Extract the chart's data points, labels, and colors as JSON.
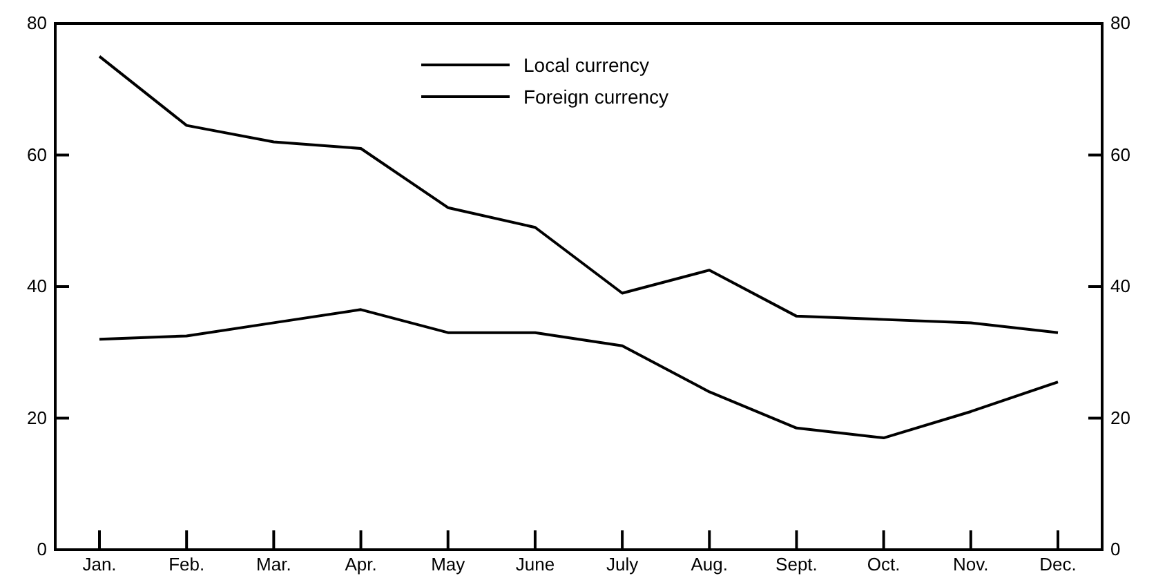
{
  "chart_data": {
    "type": "line",
    "categories": [
      "Jan.",
      "Feb.",
      "Mar.",
      "Apr.",
      "May",
      "June",
      "July",
      "Aug.",
      "Sept.",
      "Oct.",
      "Nov.",
      "Dec."
    ],
    "series": [
      {
        "name": "Local currency",
        "color": "#000000",
        "values": [
          75,
          64.5,
          62,
          61,
          52,
          49,
          39,
          42.5,
          35.5,
          35,
          34.5,
          33
        ]
      },
      {
        "name": "Foreign currency",
        "color": "#000000",
        "values": [
          32,
          32.5,
          34.5,
          36.5,
          33,
          33,
          31,
          24,
          18.5,
          17,
          21,
          25.5
        ]
      }
    ],
    "ylim": [
      0,
      80
    ],
    "yticks": [
      0,
      20,
      40,
      60,
      80
    ],
    "y2lim": [
      0,
      80
    ],
    "y2ticks": [
      0,
      20,
      40,
      60,
      80
    ],
    "grid": false,
    "legend": "top",
    "marker": "none",
    "line_style": "solid"
  }
}
